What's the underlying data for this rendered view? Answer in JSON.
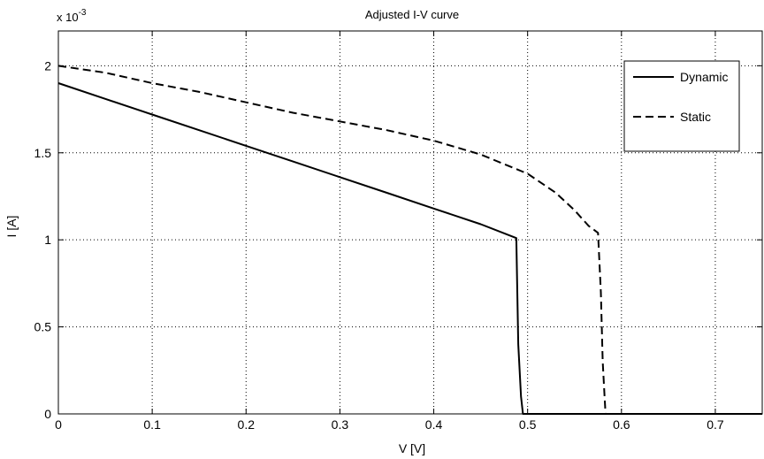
{
  "chart_data": {
    "type": "line",
    "title": "Adjusted I-V curve",
    "xlabel": "V [V]",
    "ylabel": "I [A]",
    "y_exponent": {
      "base": "x 10",
      "power": "-3"
    },
    "xlim": [
      0,
      0.75
    ],
    "ylim": [
      0,
      0.0022
    ],
    "x_ticks": [
      0,
      0.1,
      0.2,
      0.3,
      0.4,
      0.5,
      0.6,
      0.7
    ],
    "x_tick_labels": [
      "0",
      "0.1",
      "0.2",
      "0.3",
      "0.4",
      "0.5",
      "0.6",
      "0.7"
    ],
    "y_ticks": [
      0,
      0.0005,
      0.001,
      0.0015,
      0.002
    ],
    "y_tick_labels": [
      "0",
      "0.5",
      "1",
      "1.5",
      "2"
    ],
    "grid": true,
    "grid_style": "dotted",
    "legend_position": "top-right",
    "series": [
      {
        "name": "Dynamic",
        "style": "solid",
        "color": "#000000",
        "x": [
          0,
          0.05,
          0.1,
          0.15,
          0.2,
          0.25,
          0.3,
          0.35,
          0.4,
          0.45,
          0.488,
          0.49,
          0.493,
          0.495,
          0.75
        ],
        "y": [
          0.0019,
          0.00181,
          0.00172,
          0.00163,
          0.00154,
          0.00145,
          0.00136,
          0.00127,
          0.00118,
          0.00109,
          0.00101,
          0.0004,
          0.0001,
          0,
          0
        ]
      },
      {
        "name": "Static",
        "style": "dashed",
        "color": "#000000",
        "x": [
          0,
          0.05,
          0.1,
          0.15,
          0.2,
          0.25,
          0.3,
          0.35,
          0.4,
          0.45,
          0.5,
          0.53,
          0.55,
          0.565,
          0.575,
          0.578,
          0.58,
          0.582,
          0.583,
          0.75
        ],
        "y": [
          0.002,
          0.00196,
          0.0019,
          0.00185,
          0.00179,
          0.00173,
          0.00168,
          0.00163,
          0.00157,
          0.00149,
          0.00138,
          0.00127,
          0.00117,
          0.00108,
          0.00104,
          0.0007,
          0.0003,
          0.0001,
          0,
          0
        ]
      }
    ]
  }
}
